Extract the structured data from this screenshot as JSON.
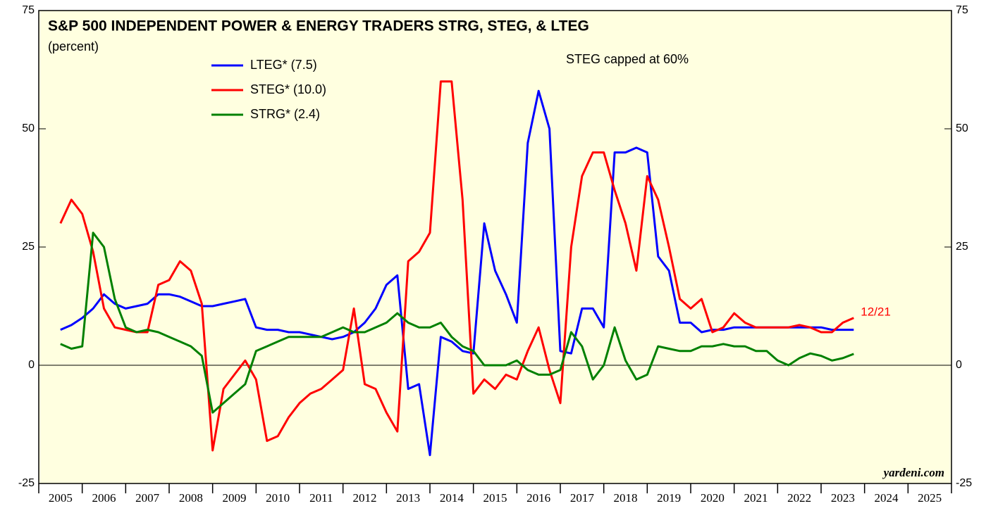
{
  "chart_data": {
    "type": "line",
    "title": "S&P 500 INDEPENDENT POWER & ENERGY TRADERS STRG, STEG, & LTEG",
    "subtitle": "(percent)",
    "annotations": [
      "STEG capped at 60%",
      "12/21"
    ],
    "watermark": "yardeni.com",
    "xlim": [
      2005,
      2026
    ],
    "xticks": [
      2005,
      2006,
      2007,
      2008,
      2009,
      2010,
      2011,
      2012,
      2013,
      2014,
      2015,
      2016,
      2017,
      2018,
      2019,
      2020,
      2021,
      2022,
      2023,
      2024,
      2025
    ],
    "ylim": [
      -25,
      75
    ],
    "yticks": [
      -25,
      0,
      25,
      50,
      75
    ],
    "x": [
      2005.5,
      2005.75,
      2006,
      2006.25,
      2006.5,
      2006.75,
      2007,
      2007.25,
      2007.5,
      2007.75,
      2008,
      2008.25,
      2008.5,
      2008.75,
      2009,
      2009.25,
      2009.5,
      2009.75,
      2010,
      2010.25,
      2010.5,
      2010.75,
      2011,
      2011.25,
      2011.5,
      2011.75,
      2012,
      2012.25,
      2012.5,
      2012.75,
      2013,
      2013.25,
      2013.5,
      2013.75,
      2014,
      2014.25,
      2014.5,
      2014.75,
      2015,
      2015.25,
      2015.5,
      2015.75,
      2016,
      2016.25,
      2016.5,
      2016.75,
      2017,
      2017.25,
      2017.5,
      2017.75,
      2018,
      2018.25,
      2018.5,
      2018.75,
      2019,
      2019.25,
      2019.5,
      2019.75,
      2020,
      2020.25,
      2020.5,
      2020.75,
      2021,
      2021.25,
      2021.5,
      2021.75,
      2022,
      2022.25,
      2022.5,
      2022.75,
      2023,
      2023.25,
      2023.5,
      2023.75
    ],
    "series": [
      {
        "name": "LTEG* (7.5)",
        "color": "#0000ff",
        "values": [
          7.5,
          8.5,
          10,
          12,
          15,
          13,
          12,
          12.5,
          13,
          15,
          15,
          14.5,
          13.5,
          12.5,
          12.5,
          13,
          13.5,
          14,
          8,
          7.5,
          7.5,
          7,
          7,
          6.5,
          6,
          5.5,
          6,
          7,
          9,
          12,
          17,
          19,
          -5,
          -4,
          -19,
          6,
          5,
          3,
          2.5,
          30,
          20,
          15,
          9,
          47,
          58,
          50,
          3,
          2.5,
          12,
          12,
          8,
          45,
          45,
          46,
          45,
          23,
          20,
          9,
          9,
          7,
          7.5,
          7.5,
          8,
          8,
          8,
          8,
          8,
          8,
          8,
          8,
          8,
          7.5,
          7.5,
          7.5
        ]
      },
      {
        "name": "STEG* (10.0)",
        "color": "#ff0000",
        "values": [
          30,
          35,
          32,
          24,
          12,
          8,
          7.5,
          7,
          7,
          17,
          18,
          22,
          20,
          13,
          -18,
          -5,
          -2,
          1,
          -3,
          -16,
          -15,
          -11,
          -8,
          -6,
          -5,
          -3,
          -1,
          12,
          -4,
          -5,
          -10,
          -14,
          22,
          24,
          28,
          60,
          60,
          35,
          -6,
          -3,
          -5,
          -2,
          -3,
          3,
          8,
          -1,
          -8,
          25,
          40,
          45,
          45,
          37,
          30,
          20,
          40,
          35,
          25,
          14,
          12,
          14,
          7,
          8,
          11,
          9,
          8,
          8,
          8,
          8,
          8.5,
          8,
          7,
          7,
          9,
          10
        ]
      },
      {
        "name": "STRG* (2.4)",
        "color": "#008000",
        "values": [
          4.5,
          3.5,
          4,
          28,
          25,
          14,
          8,
          7,
          7.5,
          7,
          6,
          5,
          4,
          2,
          -10,
          -8,
          -6,
          -4,
          3,
          4,
          5,
          6,
          6,
          6,
          6,
          7,
          8,
          7,
          7,
          8,
          9,
          11,
          9,
          8,
          8,
          9,
          6,
          4,
          3,
          0,
          0,
          0,
          1,
          -1,
          -2,
          -2,
          -1,
          7,
          4,
          -3,
          0,
          8,
          1,
          -3,
          -2,
          4,
          3.5,
          3,
          3,
          4,
          4,
          4.5,
          4,
          4,
          3,
          3,
          1,
          0,
          1.5,
          2.5,
          2,
          1,
          1.5,
          2.4
        ]
      }
    ]
  }
}
